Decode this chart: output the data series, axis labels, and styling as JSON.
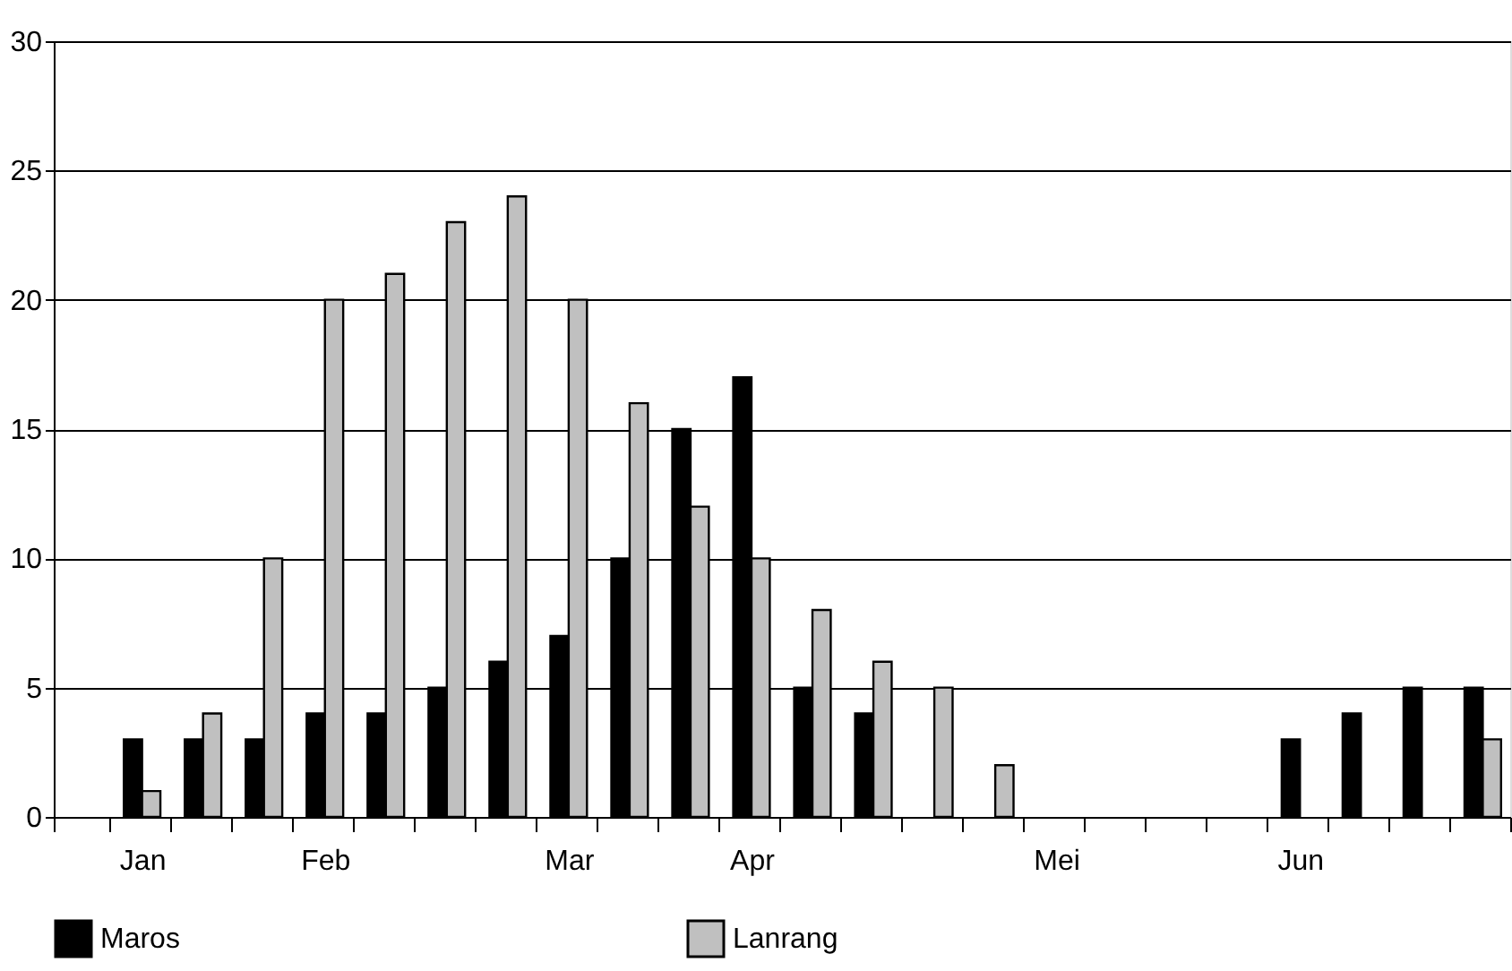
{
  "chart_data": {
    "type": "bar",
    "categories": [
      null,
      "Jan",
      null,
      null,
      "Feb",
      null,
      null,
      null,
      "Mar",
      null,
      null,
      "Apr",
      null,
      null,
      null,
      null,
      "Mei",
      null,
      null,
      null,
      "Jun",
      null,
      null,
      null
    ],
    "series": [
      {
        "name": "Maros",
        "color": "#000000",
        "values": [
          null,
          3,
          3,
          3,
          4,
          4,
          5,
          6,
          7,
          10,
          15,
          17,
          5,
          4,
          null,
          null,
          null,
          null,
          null,
          null,
          3,
          4,
          5,
          5
        ]
      },
      {
        "name": "Lanrang",
        "color": "#c0c0c0",
        "values": [
          null,
          1,
          4,
          10,
          20,
          21,
          23,
          24,
          20,
          16,
          12,
          10,
          8,
          6,
          5,
          2,
          null,
          null,
          null,
          null,
          null,
          null,
          null,
          3
        ]
      }
    ],
    "ylim": [
      0,
      30
    ],
    "yticks": [
      0,
      5,
      10,
      15,
      20,
      25,
      30
    ],
    "grid": "y",
    "legend": "bottom"
  }
}
